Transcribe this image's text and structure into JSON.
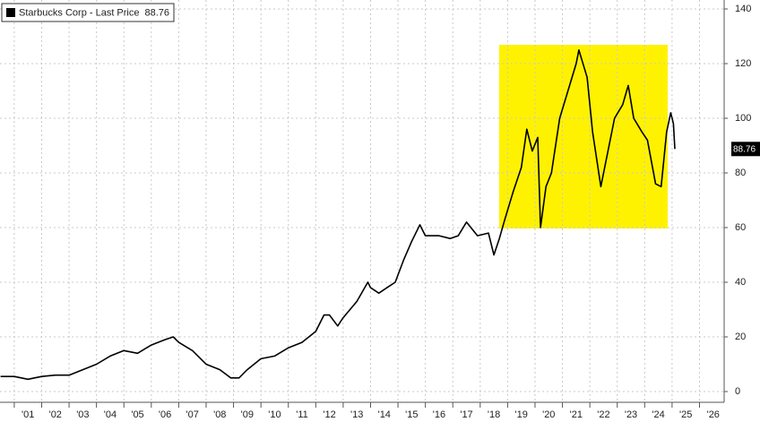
{
  "chart_data": {
    "type": "line",
    "series": [
      {
        "name": "Starbucks Corp - Last Price",
        "color": "#000000",
        "x": [
          2000.5,
          2001,
          2001.5,
          2002,
          2002.5,
          2003,
          2003.5,
          2004,
          2004.5,
          2005,
          2005.5,
          2006,
          2006.5,
          2006.8,
          2007,
          2007.5,
          2008,
          2008.5,
          2008.9,
          2009.2,
          2009.5,
          2010,
          2010.5,
          2011,
          2011.5,
          2012,
          2012.3,
          2012.5,
          2012.8,
          2013,
          2013.5,
          2013.9,
          2014,
          2014.3,
          2014.6,
          2014.9,
          2015.2,
          2015.5,
          2015.8,
          2016,
          2016.5,
          2016.9,
          2017.2,
          2017.5,
          2017.9,
          2018.3,
          2018.5,
          2018.7,
          2018.9,
          2019.2,
          2019.5,
          2019.7,
          2019.9,
          2020.1,
          2020.2,
          2020.4,
          2020.6,
          2020.9,
          2021.2,
          2021.5,
          2021.6,
          2021.9,
          2022.1,
          2022.4,
          2022.7,
          2022.9,
          2023.2,
          2023.4,
          2023.6,
          2023.9,
          2024.1,
          2024.4,
          2024.6,
          2024.8,
          2024.95,
          2025.05,
          2025.1
        ],
        "values": [
          5.5,
          5.5,
          4.5,
          5.5,
          6,
          6,
          8,
          10,
          13,
          15,
          14,
          17,
          19,
          20,
          18,
          15,
          10,
          8,
          5,
          5,
          8,
          12,
          13,
          16,
          18,
          22,
          28,
          28,
          24,
          27,
          33,
          40,
          38,
          36,
          38,
          40,
          48,
          55,
          61,
          57,
          57,
          56,
          57,
          62,
          57,
          58,
          50,
          56,
          63,
          73,
          82,
          96,
          88,
          93,
          60,
          75,
          80,
          100,
          110,
          120,
          125,
          115,
          95,
          75,
          90,
          100,
          105,
          112,
          100,
          95,
          92,
          76,
          75,
          95,
          102,
          98,
          88.76
        ]
      }
    ],
    "xlim": [
      2000.48,
      2026.9
    ],
    "xticks": [
      {
        "value": 2001,
        "label": "'01"
      },
      {
        "value": 2002,
        "label": "'02"
      },
      {
        "value": 2003,
        "label": "'03"
      },
      {
        "value": 2004,
        "label": "'04"
      },
      {
        "value": 2005,
        "label": "'05"
      },
      {
        "value": 2006,
        "label": "'06"
      },
      {
        "value": 2007,
        "label": "'07"
      },
      {
        "value": 2008,
        "label": "'08"
      },
      {
        "value": 2009,
        "label": "'09"
      },
      {
        "value": 2010,
        "label": "'10"
      },
      {
        "value": 2011,
        "label": "'11"
      },
      {
        "value": 2012,
        "label": "'12"
      },
      {
        "value": 2013,
        "label": "'13"
      },
      {
        "value": 2014,
        "label": "'14"
      },
      {
        "value": 2015,
        "label": "'15"
      },
      {
        "value": 2016,
        "label": "'16"
      },
      {
        "value": 2017,
        "label": "'17"
      },
      {
        "value": 2018,
        "label": "'18"
      },
      {
        "value": 2019,
        "label": "'19"
      },
      {
        "value": 2020,
        "label": "'20"
      },
      {
        "value": 2021,
        "label": "'21"
      },
      {
        "value": 2022,
        "label": "'22"
      },
      {
        "value": 2023,
        "label": "'23"
      },
      {
        "value": 2024,
        "label": "'24"
      },
      {
        "value": 2025,
        "label": "'25"
      },
      {
        "value": 2026,
        "label": "'26"
      }
    ],
    "ylim": [
      0,
      140
    ],
    "yticks": [
      0,
      20,
      40,
      60,
      80,
      100,
      120,
      140
    ],
    "grid": true
  }
}
